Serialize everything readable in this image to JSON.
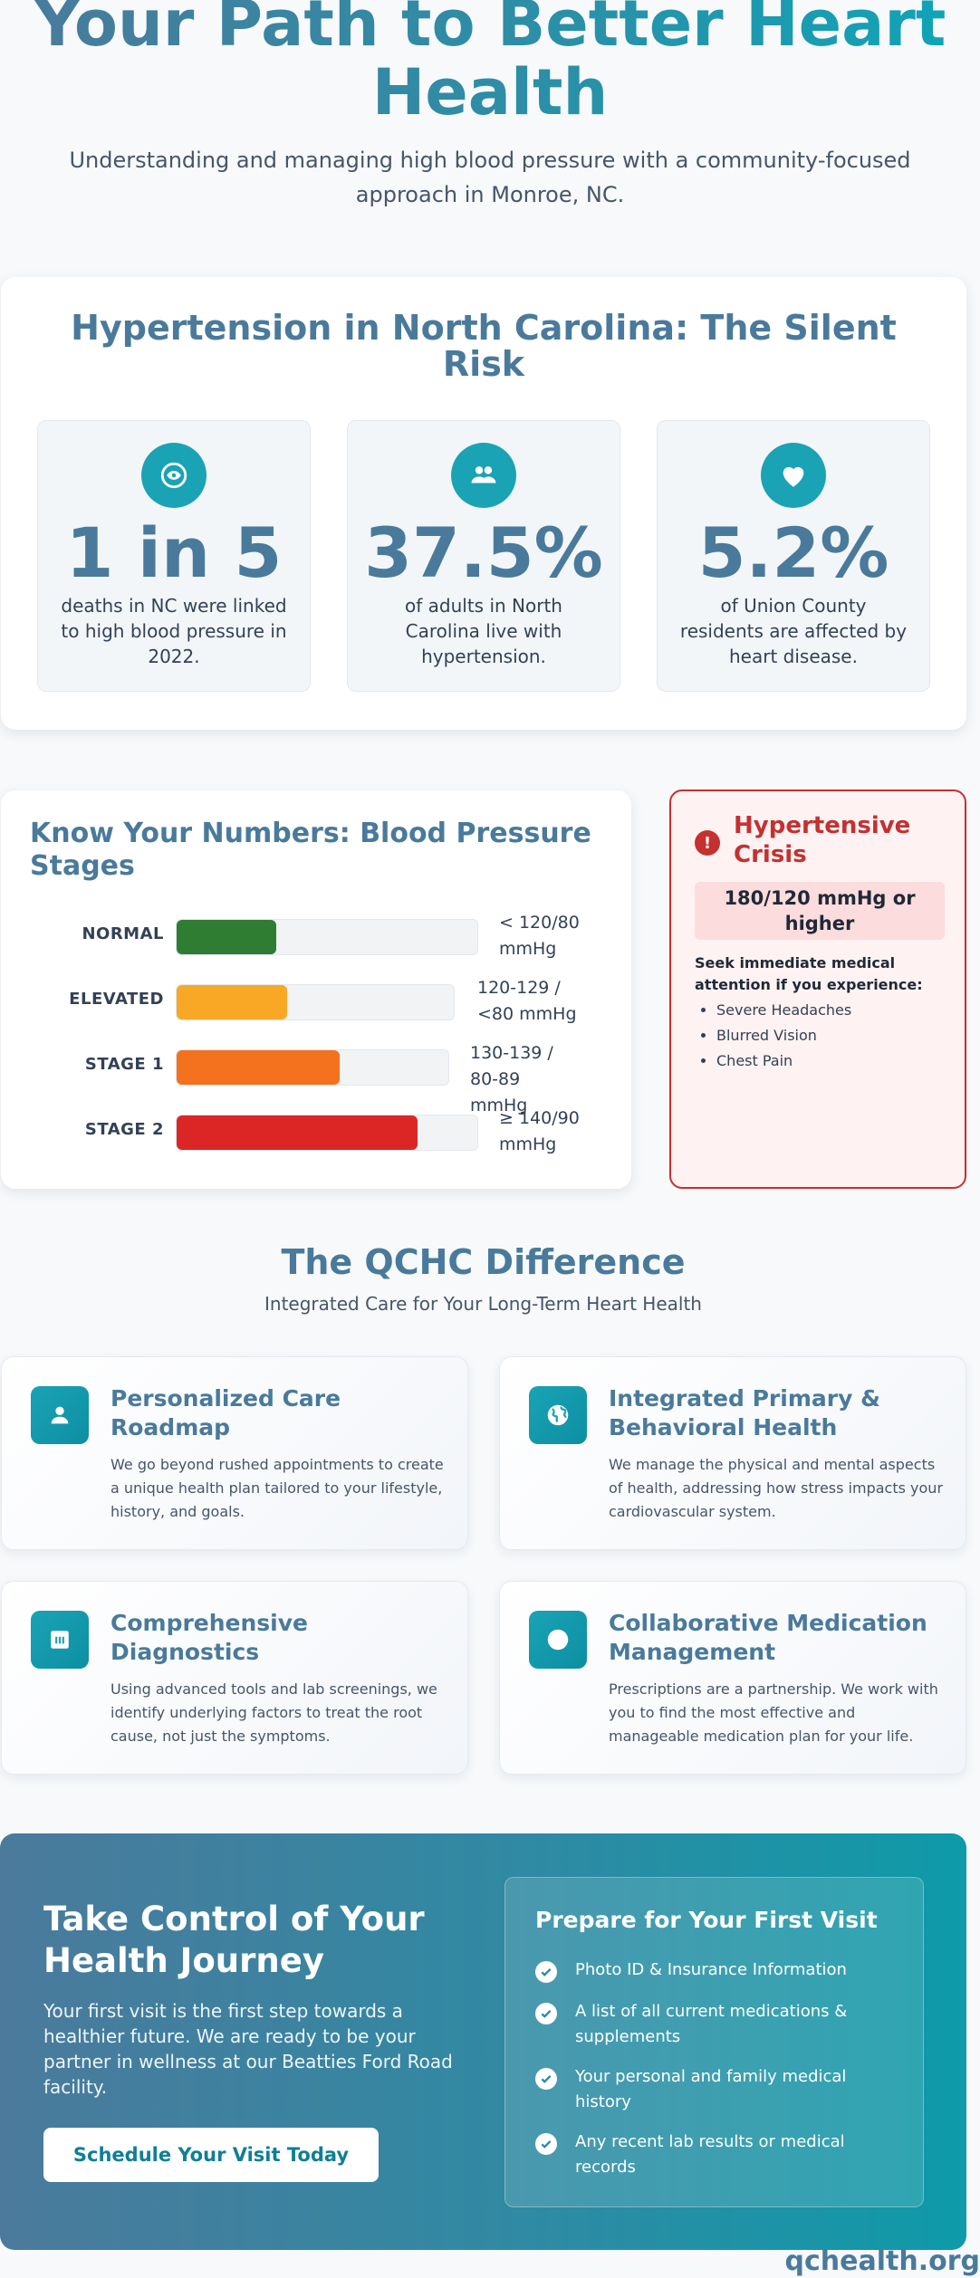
{
  "hero": {
    "title": "Your Path to Better Heart Health",
    "subtitle": "Understanding and managing high blood pressure with a community-focused approach in Monroe, NC."
  },
  "stats_section": {
    "title": "Hypertension in North Carolina: The Silent Risk",
    "stats": [
      {
        "icon": "eye-icon",
        "value": "1 in 5",
        "description": "deaths in NC were linked to high blood pressure in 2022."
      },
      {
        "icon": "people-icon",
        "value": "37.5%",
        "description": "of adults in North Carolina live with hypertension."
      },
      {
        "icon": "heart-icon",
        "value": "5.2%",
        "description": "of Union County residents are affected by heart disease."
      }
    ]
  },
  "bp_section": {
    "title": "Know Your Numbers: Blood Pressure Stages",
    "stages": [
      {
        "label": "NORMAL",
        "range": "< 120/80 mmHg",
        "level": 0.33,
        "color": "#2e7d32"
      },
      {
        "label": "ELEVATED",
        "range": "120-129 / <80 mmHg",
        "level": 0.4,
        "color": "#f9a825"
      },
      {
        "label": "STAGE 1",
        "range": "130-139 / 80-89 mmHg",
        "level": 0.6,
        "color": "#f4711d"
      },
      {
        "label": "STAGE 2",
        "range": "≥ 140/90 mmHg",
        "level": 0.8,
        "color": "#dc2626"
      }
    ]
  },
  "crisis": {
    "title": "Hypertensive Crisis",
    "threshold": "180/120 mmHg or higher",
    "note": "Seek immediate medical attention if you experience:",
    "symptoms": [
      "Severe Headaches",
      "Blurred Vision",
      "Chest Pain"
    ],
    "color": "#c53030"
  },
  "difference": {
    "title": "The QCHC Difference",
    "subtitle": "Integrated Care for Your Long-Term Heart Health",
    "features": [
      {
        "icon": "person-icon",
        "title": "Personalized Care Roadmap",
        "description": "We go beyond rushed appointments to create a unique health plan tailored to your lifestyle, history, and goals."
      },
      {
        "icon": "globe-icon",
        "title": "Integrated Primary & Behavioral Health",
        "description": "We manage the physical and mental aspects of health, addressing how stress impacts your cardiovascular system."
      },
      {
        "icon": "lab-icon",
        "title": "Comprehensive Diagnostics",
        "description": "Using advanced tools and lab screenings, we identify underlying factors to treat the root cause, not just the symptoms."
      },
      {
        "icon": "pill-icon",
        "title": "Collaborative Medication Management",
        "description": "Prescriptions are a partnership. We work with you to find the most effective and manageable medication plan for your life."
      }
    ]
  },
  "cta": {
    "title": "Take Control of Your Health Journey",
    "text": "Your first visit is the first step towards a healthier future. We are ready to be your partner in wellness at our Beatties Ford Road facility.",
    "button": "Schedule Your Visit Today",
    "prep_title": "Prepare for Your First Visit",
    "prep_items": [
      "Photo ID & Insurance Information",
      "A list of all current medications & supplements",
      "Your personal and family medical history",
      "Any recent lab results or medical records"
    ]
  },
  "footer": {
    "brand": "qchealth.org"
  },
  "colors": {
    "accent": "#4a7a9b",
    "teal": "#1aa3b5",
    "danger": "#c53030"
  }
}
